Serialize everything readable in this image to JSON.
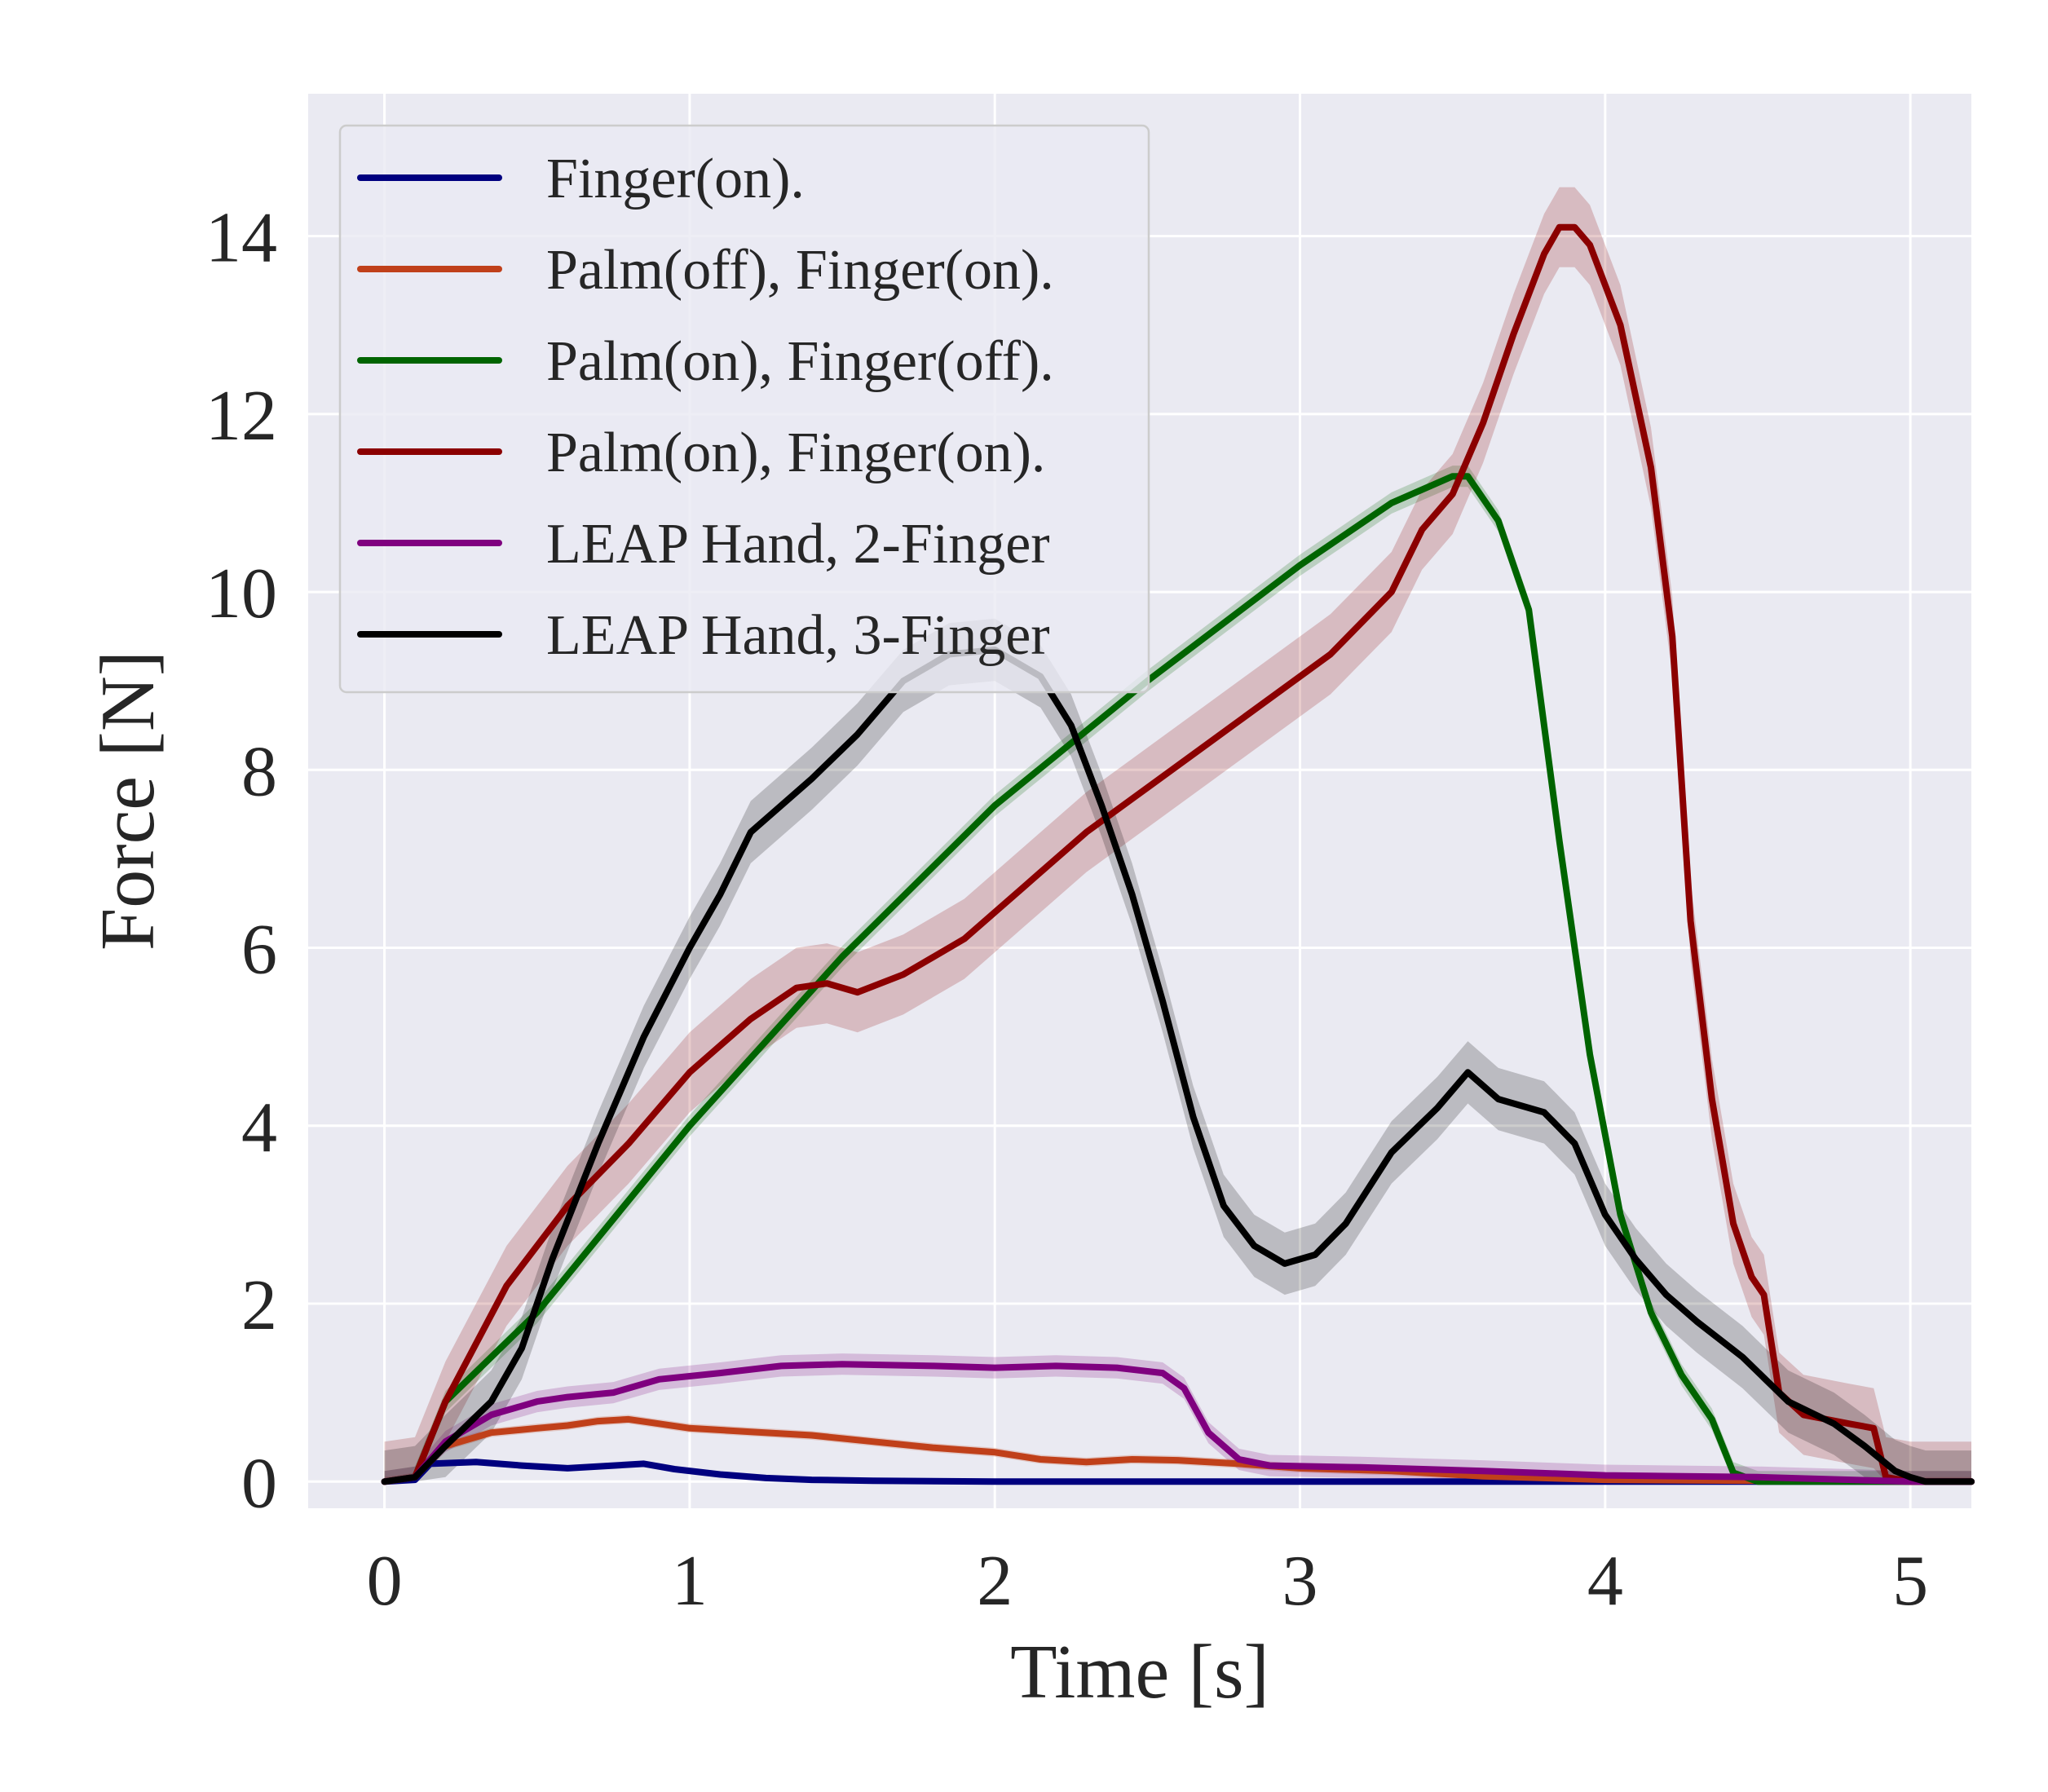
{
  "chart_data": {
    "type": "line",
    "title": "",
    "xlabel": "Time [s]",
    "ylabel": "Force [N]",
    "xlim": [
      -0.25,
      5.2
    ],
    "ylim": [
      -0.3,
      15.6
    ],
    "x_ticks": [
      0,
      1,
      2,
      3,
      4,
      5
    ],
    "y_ticks": [
      0,
      2,
      4,
      6,
      8,
      10,
      12,
      14
    ],
    "grid": true,
    "legend_position": "top-left",
    "background_color": "#eaeaf2",
    "series": [
      {
        "name": "Finger(on).",
        "color": "#00007f",
        "points": [
          [
            0,
            0
          ],
          [
            0.1,
            0.02
          ],
          [
            0.15,
            0.2
          ],
          [
            0.3,
            0.22
          ],
          [
            0.45,
            0.18
          ],
          [
            0.6,
            0.15
          ],
          [
            0.75,
            0.18
          ],
          [
            0.85,
            0.2
          ],
          [
            0.95,
            0.14
          ],
          [
            1.1,
            0.08
          ],
          [
            1.25,
            0.04
          ],
          [
            1.4,
            0.02
          ],
          [
            1.6,
            0.01
          ],
          [
            2.0,
            0.0
          ],
          [
            3.0,
            0.0
          ],
          [
            4.0,
            0.0
          ],
          [
            5.2,
            0.0
          ]
        ],
        "band": 0.02
      },
      {
        "name": "Palm(off), Finger(on).",
        "color": "#c0401a",
        "points": [
          [
            0,
            0
          ],
          [
            0.1,
            0.05
          ],
          [
            0.2,
            0.4
          ],
          [
            0.35,
            0.55
          ],
          [
            0.5,
            0.6
          ],
          [
            0.6,
            0.63
          ],
          [
            0.7,
            0.68
          ],
          [
            0.8,
            0.7
          ],
          [
            0.9,
            0.65
          ],
          [
            1.0,
            0.6
          ],
          [
            1.2,
            0.56
          ],
          [
            1.4,
            0.52
          ],
          [
            1.6,
            0.45
          ],
          [
            1.8,
            0.38
          ],
          [
            2.0,
            0.33
          ],
          [
            2.15,
            0.25
          ],
          [
            2.3,
            0.22
          ],
          [
            2.45,
            0.25
          ],
          [
            2.6,
            0.24
          ],
          [
            2.8,
            0.2
          ],
          [
            3.0,
            0.15
          ],
          [
            3.3,
            0.12
          ],
          [
            3.6,
            0.06
          ],
          [
            4.0,
            0.02
          ],
          [
            5.0,
            0.0
          ],
          [
            5.2,
            0.0
          ]
        ],
        "band": 0.05
      },
      {
        "name": "Palm(on), Finger(off).",
        "color": "#006400",
        "points": [
          [
            0,
            0
          ],
          [
            0.1,
            0.05
          ],
          [
            0.2,
            0.9
          ],
          [
            0.5,
            1.9
          ],
          [
            1.0,
            4.0
          ],
          [
            1.5,
            5.9
          ],
          [
            2.0,
            7.6
          ],
          [
            2.5,
            9.0
          ],
          [
            3.0,
            10.3
          ],
          [
            3.3,
            11.0
          ],
          [
            3.5,
            11.3
          ],
          [
            3.55,
            11.3
          ],
          [
            3.65,
            10.8
          ],
          [
            3.75,
            9.8
          ],
          [
            3.85,
            7.2
          ],
          [
            3.95,
            4.8
          ],
          [
            4.05,
            3.0
          ],
          [
            4.15,
            1.9
          ],
          [
            4.25,
            1.2
          ],
          [
            4.35,
            0.7
          ],
          [
            4.42,
            0.1
          ],
          [
            4.5,
            0.0
          ],
          [
            5.2,
            0.0
          ]
        ],
        "band": 0.12
      },
      {
        "name": "Palm(on), Finger(on).",
        "color": "#8b0000",
        "points": [
          [
            0,
            0
          ],
          [
            0.1,
            0.05
          ],
          [
            0.2,
            0.9
          ],
          [
            0.4,
            2.2
          ],
          [
            0.6,
            3.1
          ],
          [
            0.8,
            3.8
          ],
          [
            1.0,
            4.6
          ],
          [
            1.2,
            5.2
          ],
          [
            1.35,
            5.55
          ],
          [
            1.45,
            5.6
          ],
          [
            1.55,
            5.5
          ],
          [
            1.7,
            5.7
          ],
          [
            1.9,
            6.1
          ],
          [
            2.1,
            6.7
          ],
          [
            2.3,
            7.3
          ],
          [
            2.5,
            7.8
          ],
          [
            2.7,
            8.3
          ],
          [
            2.9,
            8.8
          ],
          [
            3.1,
            9.3
          ],
          [
            3.3,
            10.0
          ],
          [
            3.4,
            10.7
          ],
          [
            3.5,
            11.1
          ],
          [
            3.6,
            11.9
          ],
          [
            3.7,
            12.9
          ],
          [
            3.8,
            13.8
          ],
          [
            3.85,
            14.1
          ],
          [
            3.9,
            14.1
          ],
          [
            3.95,
            13.9
          ],
          [
            4.05,
            13.0
          ],
          [
            4.15,
            11.4
          ],
          [
            4.22,
            9.5
          ],
          [
            4.28,
            6.3
          ],
          [
            4.35,
            4.3
          ],
          [
            4.42,
            2.9
          ],
          [
            4.48,
            2.3
          ],
          [
            4.52,
            2.1
          ],
          [
            4.57,
            1.0
          ],
          [
            4.65,
            0.75
          ],
          [
            4.8,
            0.65
          ],
          [
            4.88,
            0.6
          ],
          [
            4.92,
            0.05
          ],
          [
            5.0,
            0.0
          ],
          [
            5.2,
            0.0
          ]
        ],
        "band": 0.45
      },
      {
        "name": "LEAP Hand, 2-Finger",
        "color": "#7f007f",
        "points": [
          [
            0,
            0
          ],
          [
            0.1,
            0.05
          ],
          [
            0.2,
            0.45
          ],
          [
            0.35,
            0.75
          ],
          [
            0.5,
            0.9
          ],
          [
            0.6,
            0.95
          ],
          [
            0.75,
            1.0
          ],
          [
            0.9,
            1.15
          ],
          [
            1.1,
            1.22
          ],
          [
            1.3,
            1.3
          ],
          [
            1.5,
            1.32
          ],
          [
            1.8,
            1.3
          ],
          [
            2.0,
            1.28
          ],
          [
            2.2,
            1.3
          ],
          [
            2.4,
            1.28
          ],
          [
            2.55,
            1.22
          ],
          [
            2.62,
            1.05
          ],
          [
            2.7,
            0.55
          ],
          [
            2.8,
            0.25
          ],
          [
            2.9,
            0.18
          ],
          [
            3.2,
            0.16
          ],
          [
            3.6,
            0.12
          ],
          [
            4.0,
            0.07
          ],
          [
            4.5,
            0.05
          ],
          [
            5.0,
            0.0
          ],
          [
            5.2,
            0.0
          ]
        ],
        "band": 0.12
      },
      {
        "name": "LEAP Hand, 3-Finger",
        "color": "#000000",
        "points": [
          [
            0,
            0
          ],
          [
            0.1,
            0.05
          ],
          [
            0.2,
            0.4
          ],
          [
            0.35,
            0.9
          ],
          [
            0.45,
            1.5
          ],
          [
            0.55,
            2.5
          ],
          [
            0.7,
            3.8
          ],
          [
            0.85,
            5.0
          ],
          [
            1.0,
            6.0
          ],
          [
            1.1,
            6.6
          ],
          [
            1.2,
            7.3
          ],
          [
            1.3,
            7.6
          ],
          [
            1.4,
            7.9
          ],
          [
            1.55,
            8.4
          ],
          [
            1.7,
            9.0
          ],
          [
            1.85,
            9.3
          ],
          [
            2.0,
            9.35
          ],
          [
            2.15,
            9.05
          ],
          [
            2.25,
            8.5
          ],
          [
            2.35,
            7.6
          ],
          [
            2.45,
            6.6
          ],
          [
            2.55,
            5.4
          ],
          [
            2.65,
            4.1
          ],
          [
            2.75,
            3.1
          ],
          [
            2.85,
            2.65
          ],
          [
            2.95,
            2.45
          ],
          [
            3.05,
            2.55
          ],
          [
            3.15,
            2.9
          ],
          [
            3.3,
            3.7
          ],
          [
            3.45,
            4.2
          ],
          [
            3.55,
            4.6
          ],
          [
            3.65,
            4.3
          ],
          [
            3.8,
            4.15
          ],
          [
            3.9,
            3.8
          ],
          [
            4.0,
            3.0
          ],
          [
            4.1,
            2.5
          ],
          [
            4.2,
            2.1
          ],
          [
            4.3,
            1.8
          ],
          [
            4.45,
            1.4
          ],
          [
            4.6,
            0.9
          ],
          [
            4.75,
            0.65
          ],
          [
            4.85,
            0.4
          ],
          [
            4.95,
            0.12
          ],
          [
            5.0,
            0.05
          ],
          [
            5.05,
            0.0
          ],
          [
            5.2,
            0.0
          ]
        ],
        "band": 0.35
      }
    ]
  }
}
